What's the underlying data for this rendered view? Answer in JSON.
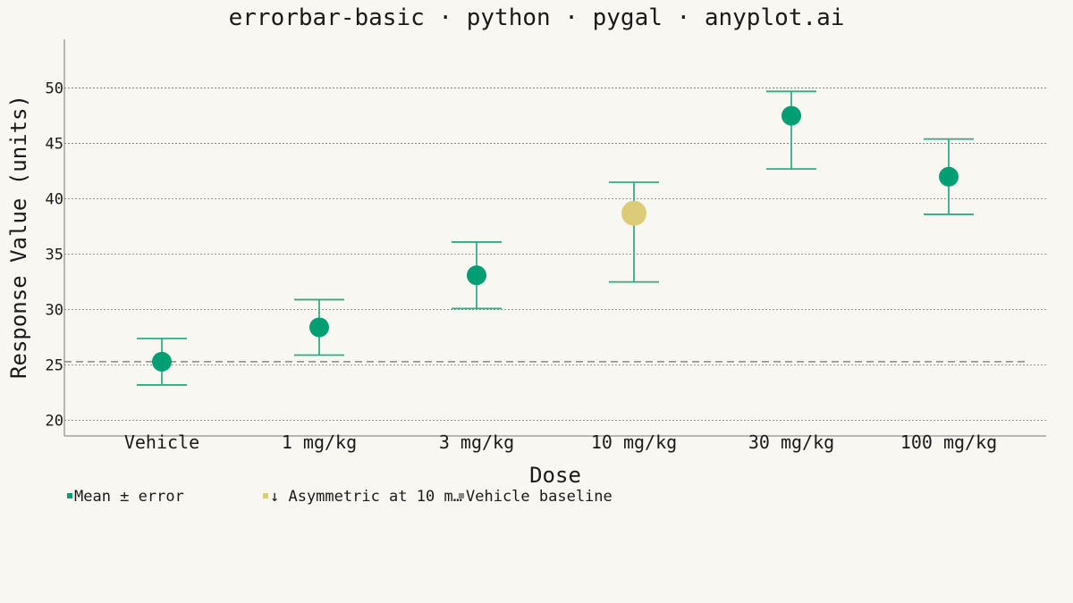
{
  "chart_data": {
    "type": "errorbar",
    "title": "errorbar-basic · python · pygal · anyplot.ai",
    "xlabel": "Dose",
    "ylabel": "Response Value (units)",
    "ylim": [
      18.6,
      54.4
    ],
    "yticks": [
      "20",
      "25",
      "30",
      "35",
      "40",
      "45",
      "50"
    ],
    "grid": true,
    "categories": [
      "Vehicle",
      "1 mg/kg",
      "3 mg/kg",
      "10 mg/kg",
      "30 mg/kg",
      "100 mg/kg"
    ],
    "series": [
      {
        "name": "Mean ± error",
        "color": "#009E73",
        "points": [
          {
            "category": "Vehicle",
            "y": 25.3,
            "lower": 23.2,
            "upper": 27.4
          },
          {
            "category": "1 mg/kg",
            "y": 28.4,
            "lower": 25.9,
            "upper": 30.9
          },
          {
            "category": "3 mg/kg",
            "y": 33.1,
            "lower": 30.1,
            "upper": 36.1
          },
          {
            "category": "30 mg/kg",
            "y": 47.5,
            "lower": 42.7,
            "upper": 49.7
          },
          {
            "category": "100 mg/kg",
            "y": 42.0,
            "lower": 38.6,
            "upper": 45.4
          }
        ]
      },
      {
        "name": "↓ Asymmetric at 10 m…",
        "color": "#DDCC77",
        "points": [
          {
            "category": "10 mg/kg",
            "y": 38.7,
            "lower": 32.5,
            "upper": 41.5
          }
        ]
      }
    ],
    "reference_line": {
      "name": "Vehicle baseline",
      "y": 25.3,
      "color": "#888888",
      "style": "dashed"
    },
    "legend_position": "bottom-left",
    "colors": {
      "background": "#F9F7F1",
      "errorbar": "#2BAE87",
      "axis": "#777777"
    }
  }
}
